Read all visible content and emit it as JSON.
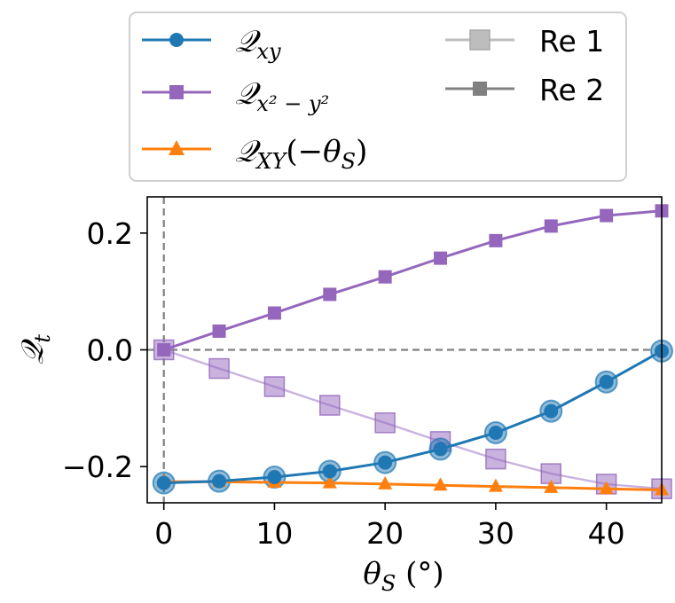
{
  "chart_data": {
    "type": "line",
    "xlabel": "θS (°)",
    "ylabel": "Qt",
    "xlim": [
      -1.5,
      45
    ],
    "ylim": [
      -0.262,
      0.262
    ],
    "xticks": [
      0,
      10,
      20,
      30,
      40
    ],
    "yticks": [
      -0.2,
      0.0,
      0.2
    ],
    "xtick_labels": [
      "0",
      "10",
      "20",
      "30",
      "40"
    ],
    "ytick_labels": [
      "−0.2",
      "0.0",
      "0.2"
    ],
    "reference_lines": [
      {
        "orientation": "vertical",
        "x": 0,
        "style": "dashed",
        "color": "#808080"
      },
      {
        "orientation": "horizontal",
        "y": 0,
        "style": "dashed",
        "color": "#808080"
      }
    ],
    "legend_placement": "above-plot",
    "series": [
      {
        "name": "Qxy",
        "legend_label": "Qxy",
        "color": "#1f77b4",
        "marker": "circle",
        "x": [
          0,
          5,
          10,
          15,
          20,
          25,
          30,
          35,
          40,
          45
        ],
        "y": [
          -0.228,
          -0.225,
          -0.218,
          -0.208,
          -0.193,
          -0.17,
          -0.142,
          -0.105,
          -0.055,
          -0.002
        ]
      },
      {
        "name": "Qx²−y²",
        "legend_label": "Qx²−y²",
        "color": "#9467bd",
        "marker": "square",
        "x": [
          0,
          5,
          10,
          15,
          20,
          25,
          30,
          35,
          40,
          45
        ],
        "y": [
          0.0,
          0.032,
          0.063,
          0.095,
          0.125,
          0.157,
          0.187,
          0.212,
          0.23,
          0.238
        ]
      },
      {
        "name": "QXY(−θS)",
        "legend_label": "QXY(−θS)",
        "color": "#ff7f0e",
        "marker": "triangle",
        "x": [
          0,
          5,
          10,
          15,
          20,
          25,
          30,
          35,
          40,
          45
        ],
        "y": [
          -0.226,
          -0.226,
          -0.227,
          -0.228,
          -0.23,
          -0.232,
          -0.234,
          -0.236,
          -0.238,
          -0.24
        ]
      },
      {
        "name": "Re 1 (Qxy)",
        "color": "#1f77b4",
        "marker": "circle-large",
        "alpha": 0.5,
        "x": [
          0,
          5,
          10,
          15,
          20,
          25,
          30,
          35,
          40,
          45
        ],
        "y": [
          -0.228,
          -0.225,
          -0.218,
          -0.208,
          -0.193,
          -0.17,
          -0.142,
          -0.105,
          -0.055,
          -0.002
        ]
      },
      {
        "name": "Re 1 (Qx²−y²)",
        "color": "#9467bd",
        "marker": "square-large",
        "alpha": 0.5,
        "x": [
          0,
          5,
          10,
          15,
          20,
          25,
          30,
          35,
          40,
          45
        ],
        "y": [
          0.0,
          -0.032,
          -0.063,
          -0.095,
          -0.125,
          -0.157,
          -0.187,
          -0.212,
          -0.23,
          -0.238
        ]
      }
    ],
    "legend": [
      {
        "label": "Qxy",
        "color": "#1f77b4",
        "marker": "circle"
      },
      {
        "label": "Qx²−y²",
        "color": "#9467bd",
        "marker": "square"
      },
      {
        "label": "QXY(−θS)",
        "color": "#ff7f0e",
        "marker": "triangle"
      },
      {
        "label": "Re 1",
        "color": "#bdbdbd",
        "marker": "square-large"
      },
      {
        "label": "Re 2",
        "color": "#808080",
        "marker": "square"
      }
    ]
  }
}
